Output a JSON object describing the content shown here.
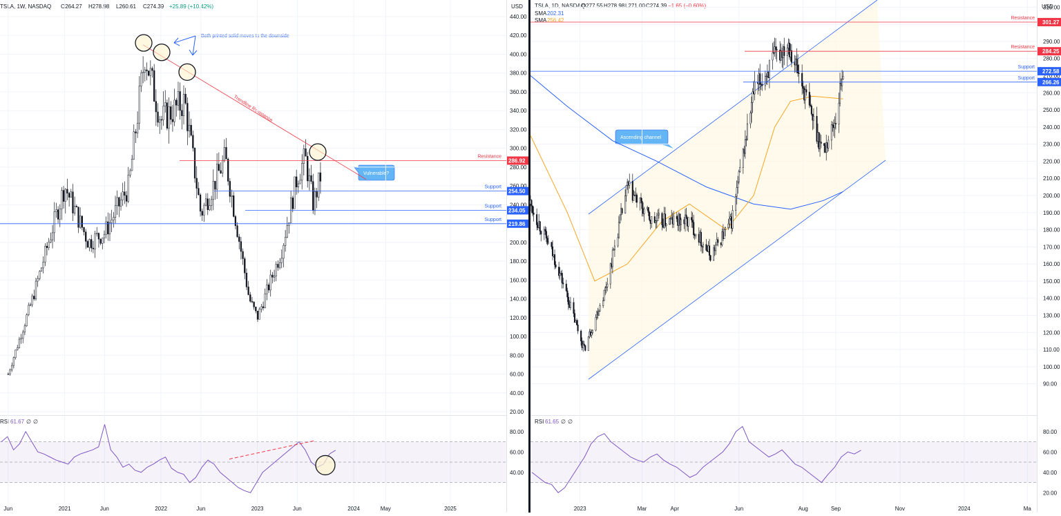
{
  "left": {
    "legend": {
      "symbol": "TSLA, 1W, NASDAQ",
      "o": "O264.27",
      "h": "H278.98",
      "l": "L260.61",
      "c": "C274.39",
      "chg": "+25.89 (+10.42%)"
    },
    "currency": "USD",
    "price_ticks": [
      "440.00",
      "420.00",
      "400.00",
      "380.00",
      "360.00",
      "340.00",
      "320.00",
      "300.00",
      "280.00",
      "260.00",
      "240.00",
      "220.00",
      "200.00",
      "180.00",
      "160.00",
      "140.00",
      "120.00",
      "100.00",
      "80.00",
      "60.00",
      "40.00",
      "20.00"
    ],
    "time_ticks": [
      "Jun",
      "2021",
      "Jun",
      "2022",
      "Jun",
      "2023",
      "Jun",
      "2024",
      "May",
      "2025"
    ],
    "levels": [
      {
        "label": "Resistance",
        "value": "286.92",
        "color": "#f23645"
      },
      {
        "label": "Support",
        "value": "254.50",
        "color": "#2962ff"
      },
      {
        "label": "Support",
        "value": "234.05",
        "color": "#2962ff"
      },
      {
        "label": "Support",
        "value": "219.86",
        "color": "#2962ff"
      }
    ],
    "annotations": {
      "note": "Both printed solid moves to the downside",
      "trendline": "Trendline Resistance",
      "callout": "Vulnerable?"
    },
    "rsi": {
      "label": "RSI",
      "value": "61.67",
      "extra1": "∅",
      "extra2": "∅",
      "ticks": [
        "80.00",
        "60.00",
        "40.00"
      ]
    }
  },
  "right": {
    "legend": {
      "symbol": "TSLA, 1D, NASDAQ",
      "o": "O277.55",
      "h": "H278.98",
      "l": "L271.00",
      "c": "C274.39",
      "chg": "−1.65 (−0.60%)"
    },
    "sma1": {
      "label": "SMA",
      "value": "202.31",
      "color": "#2962ff"
    },
    "sma2": {
      "label": "SMA",
      "value": "256.42",
      "color": "#f5a623"
    },
    "currency": "USD",
    "price_ticks": [
      "310.00",
      "300.00",
      "290.00",
      "280.00",
      "270.00",
      "260.00",
      "250.00",
      "240.00",
      "230.00",
      "220.00",
      "210.00",
      "200.00",
      "190.00",
      "180.00",
      "170.00",
      "160.00",
      "150.00",
      "140.00",
      "130.00",
      "120.00",
      "110.00",
      "100.00",
      "90.00"
    ],
    "time_ticks": [
      "2023",
      "Mar",
      "Apr",
      "Jun",
      "Aug",
      "Sep",
      "Nov",
      "2024",
      "Ma"
    ],
    "levels": [
      {
        "label": "Resistance",
        "value": "301.27",
        "color": "#f23645"
      },
      {
        "label": "Resistance",
        "value": "284.25",
        "color": "#f23645"
      },
      {
        "label": "Support",
        "value": "272.58",
        "color": "#2962ff"
      },
      {
        "label": "Support",
        "value": "266.26",
        "color": "#2962ff"
      }
    ],
    "annotations": {
      "channel": "Ascending channel"
    },
    "rsi": {
      "label": "RSI",
      "value": "61.65",
      "extra1": "∅",
      "extra2": "∅",
      "ticks": [
        "80.00",
        "60.00",
        "40.00",
        "20.00"
      ]
    }
  },
  "chart_data": [
    {
      "type": "candlestick",
      "title": "TSLA, 1W, NASDAQ",
      "ylim": [
        20,
        440
      ],
      "x_range": [
        "2020-05",
        "2025-08"
      ],
      "close_series": {
        "x": [
          "2020-06",
          "2020-09",
          "2020-12",
          "2021-01",
          "2021-04",
          "2021-06",
          "2021-09",
          "2021-11",
          "2022-01",
          "2022-04",
          "2022-06",
          "2022-09",
          "2022-12",
          "2023-01",
          "2023-04",
          "2023-06",
          "2023-07",
          "2023-08",
          "2023-09"
        ],
        "values": [
          60,
          140,
          230,
          260,
          200,
          210,
          260,
          400,
          330,
          350,
          230,
          290,
          140,
          120,
          190,
          270,
          290,
          240,
          274.39
        ]
      },
      "levels": {
        "resistance": [
          286.92
        ],
        "support": [
          254.5,
          234.05,
          219.86
        ]
      },
      "rsi": {
        "last": 61.67,
        "ylim": [
          10,
          90
        ],
        "values": [
          70,
          75,
          62,
          68,
          80,
          70,
          60,
          58,
          55,
          52,
          50,
          48,
          55,
          58,
          60,
          62,
          65,
          87,
          62,
          55,
          45,
          48,
          42,
          40,
          45,
          48,
          52,
          55,
          44,
          40,
          38,
          30,
          35,
          45,
          52,
          48,
          40,
          35,
          30,
          25,
          22,
          20,
          30,
          40,
          45,
          50,
          55,
          60,
          65,
          70,
          62,
          50,
          45,
          48,
          58,
          61.67
        ]
      }
    },
    {
      "type": "candlestick",
      "title": "TSLA, 1D, NASDAQ",
      "ylim": [
        85,
        315
      ],
      "x_range": [
        "2022-11-15",
        "2024-03-10"
      ],
      "close_series": {
        "x": [
          "2022-11-15",
          "2022-12-10",
          "2023-01-05",
          "2023-01-25",
          "2023-02-15",
          "2023-03-10",
          "2023-04-15",
          "2023-05-05",
          "2023-05-25",
          "2023-06-15",
          "2023-07-05",
          "2023-07-18",
          "2023-08-10",
          "2023-08-20",
          "2023-09-01",
          "2023-09-08"
        ],
        "values": [
          195,
          160,
          110,
          145,
          205,
          185,
          185,
          165,
          185,
          260,
          280,
          290,
          245,
          225,
          245,
          274.39
        ]
      },
      "sma": [
        {
          "name": "SMA",
          "last": 202.31,
          "x": [
            "2022-11-15",
            "2022-12-20",
            "2023-02-01",
            "2023-03-15",
            "2023-05-01",
            "2023-06-15",
            "2023-07-20",
            "2023-08-20",
            "2023-09-08"
          ],
          "values": [
            270,
            252,
            232,
            220,
            205,
            195,
            192,
            197,
            202.31
          ]
        },
        {
          "name": "SMA",
          "last": 256.42,
          "x": [
            "2022-11-15",
            "2022-12-20",
            "2023-01-15",
            "2023-02-15",
            "2023-03-20",
            "2023-04-15",
            "2023-05-20",
            "2023-06-15",
            "2023-07-05",
            "2023-07-20",
            "2023-08-10",
            "2023-09-08"
          ],
          "values": [
            235,
            190,
            150,
            160,
            185,
            195,
            180,
            200,
            240,
            255,
            258,
            256.42
          ]
        }
      ],
      "levels": {
        "resistance": [
          301.27,
          284.25
        ],
        "support": [
          272.58,
          266.26
        ]
      },
      "rsi": {
        "last": 61.65,
        "ylim": [
          10,
          90
        ],
        "values": [
          40,
          35,
          30,
          28,
          20,
          25,
          35,
          45,
          55,
          68,
          75,
          78,
          70,
          65,
          60,
          55,
          52,
          50,
          55,
          58,
          52,
          48,
          45,
          40,
          35,
          38,
          45,
          50,
          55,
          60,
          68,
          80,
          85,
          70,
          65,
          60,
          55,
          58,
          62,
          55,
          48,
          45,
          40,
          35,
          30,
          38,
          45,
          55,
          60,
          58,
          61.65
        ]
      }
    }
  ]
}
